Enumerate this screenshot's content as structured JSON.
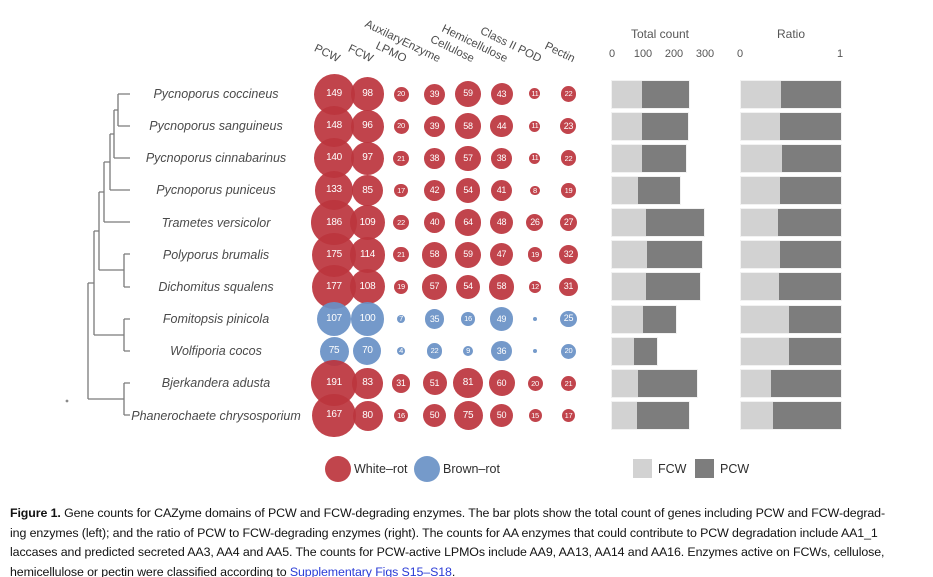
{
  "chart_data": {
    "type": "scatter",
    "subtype": "bubble-matrix with stacked horizontal bars",
    "columns": [
      "PCW",
      "FCW",
      "LPMO",
      "AuxilaryEnzyme",
      "Cellulose",
      "Hemicellulose",
      "Class II POD",
      "Pectin"
    ],
    "rows": [
      {
        "species": "Pycnoporus coccineus",
        "rot": "white-rot",
        "counts": [
          149,
          98,
          20,
          39,
          59,
          43,
          11,
          22
        ],
        "total": 247,
        "pcw_ratio": 0.6
      },
      {
        "species": "Pycnoporus sanguineus",
        "rot": "white-rot",
        "counts": [
          148,
          96,
          20,
          39,
          58,
          44,
          11,
          23
        ],
        "total": 244,
        "pcw_ratio": 0.61
      },
      {
        "species": "Pycnoporus cinnabarinus",
        "rot": "white-rot",
        "counts": [
          140,
          97,
          21,
          38,
          57,
          38,
          11,
          22
        ],
        "total": 237,
        "pcw_ratio": 0.59
      },
      {
        "species": "Pycnoporus puniceus",
        "rot": "white-rot",
        "counts": [
          133,
          85,
          17,
          42,
          54,
          41,
          8,
          19
        ],
        "total": 218,
        "pcw_ratio": 0.61
      },
      {
        "species": "Trametes versicolor",
        "rot": "white-rot",
        "counts": [
          186,
          109,
          22,
          40,
          64,
          48,
          26,
          27
        ],
        "total": 295,
        "pcw_ratio": 0.63
      },
      {
        "species": "Polyporus brumalis",
        "rot": "white-rot",
        "counts": [
          175,
          114,
          21,
          58,
          59,
          47,
          19,
          32
        ],
        "total": 289,
        "pcw_ratio": 0.61
      },
      {
        "species": "Dichomitus squalens",
        "rot": "white-rot",
        "counts": [
          177,
          108,
          19,
          57,
          54,
          58,
          12,
          31
        ],
        "total": 285,
        "pcw_ratio": 0.62
      },
      {
        "species": "Fomitopsis pinicola",
        "rot": "brown-rot",
        "counts": [
          107,
          100,
          7,
          35,
          16,
          49,
          1,
          25
        ],
        "total": 207,
        "pcw_ratio": 0.52
      },
      {
        "species": "Wolfiporia cocos",
        "rot": "brown-rot",
        "counts": [
          75,
          70,
          4,
          22,
          9,
          36,
          1,
          20
        ],
        "total": 145,
        "pcw_ratio": 0.52
      },
      {
        "species": "Bjerkandera adusta",
        "rot": "white-rot",
        "counts": [
          191,
          83,
          31,
          51,
          81,
          60,
          20,
          21
        ],
        "total": 274,
        "pcw_ratio": 0.7
      },
      {
        "species": "Phanerochaete chrysosporium",
        "rot": "white-rot",
        "counts": [
          167,
          80,
          16,
          50,
          75,
          50,
          15,
          17
        ],
        "total": 247,
        "pcw_ratio": 0.68
      }
    ],
    "total_axis": {
      "title": "Total count",
      "ticks": [
        "0",
        "100",
        "200",
        "300"
      ],
      "range": [
        0,
        300
      ]
    },
    "ratio_axis": {
      "title": "Ratio",
      "ticks": [
        "0",
        "1"
      ],
      "range": [
        0,
        1
      ]
    },
    "legend": {
      "white_rot": "White–rot",
      "brown_rot": "Brown–rot",
      "fcw": "FCW",
      "pcw": "PCW"
    },
    "tree_newick": "(((((((Pycnoporus coccineus,Pycnoporus sanguineus),Pycnoporus cinnabarinus),Pycnoporus puniceus),Trametes versicolor),(Polyporus brumalis,Dichomitus squalens)),(Fomitopsis pinicola,Wolfiporia cocos)),(Bjerkandera adusta,Phanerochaete chrysosporium))"
  },
  "colors": {
    "white_rot": "#bc353d",
    "brown_rot": "#6991c6",
    "fcw": "#d2d2d2",
    "pcw": "#7d7d7d",
    "link": "#2a3bd6",
    "tree": "#7a7a7a"
  },
  "caption": {
    "label": "Figure 1.",
    "line1": " Gene counts for CAZyme domains of PCW and FCW-degrading enzymes. The bar plots show the total count of genes including PCW and FCW-degrad-",
    "line2": "ing enzymes (left); and the ratio of PCW to FCW-degrading enzymes (right). The counts for AA enzymes that could contribute to PCW degradation include AA1_1",
    "line3": "laccases and predicted secreted AA3, AA4 and AA5. The counts for PCW-active LPMOs include AA9, AA13, AA14 and AA16. Enzymes active on FCWs, cellulose,",
    "line4_pre": "hemicellulose or pectin were classified according to ",
    "link_text": "Supplementary Figs S15–S18",
    "line4_post": "."
  }
}
